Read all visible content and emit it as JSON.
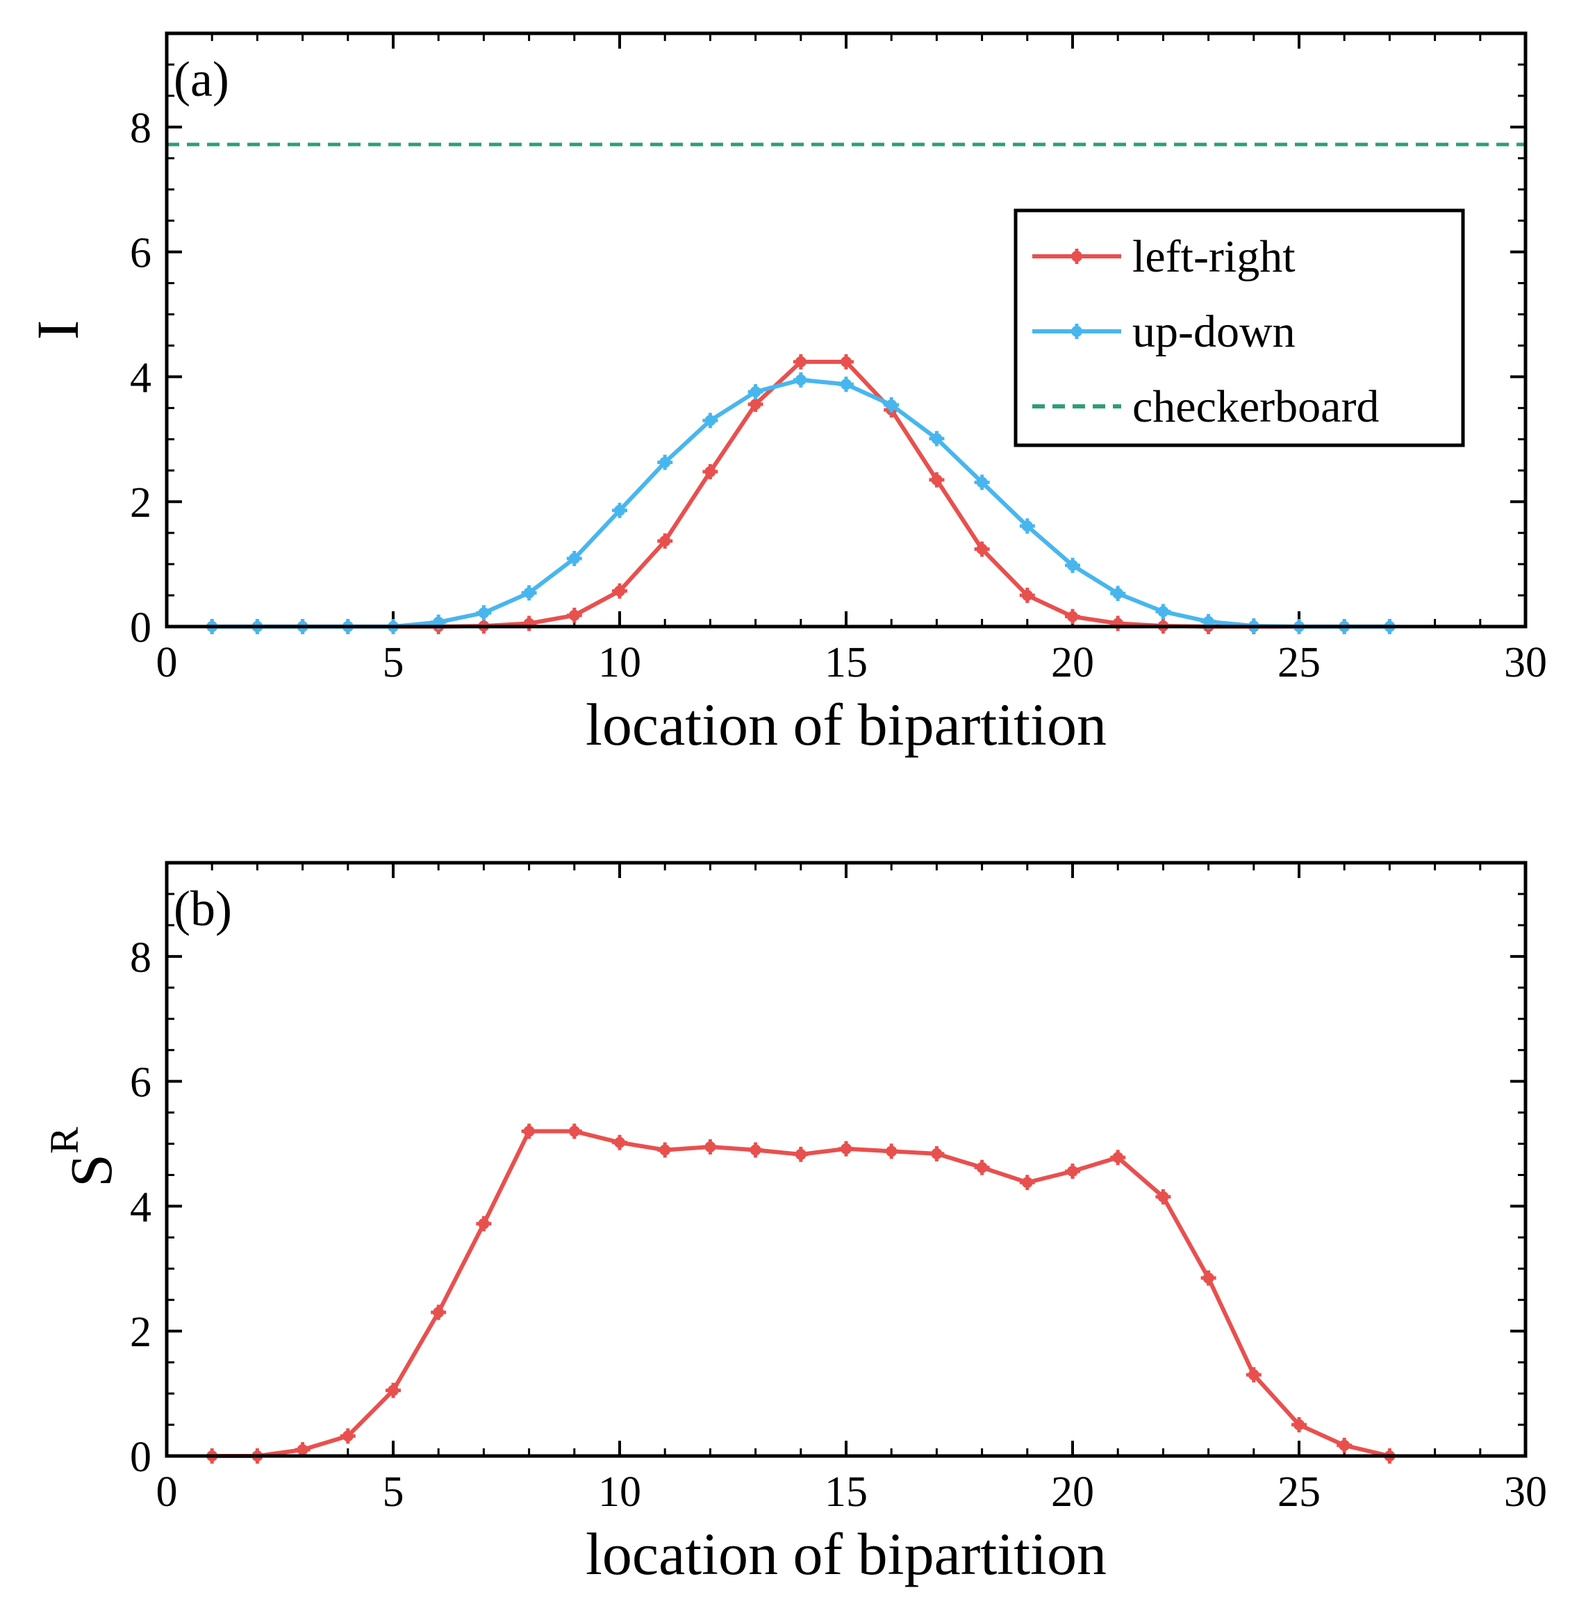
{
  "colors": {
    "left_right": "#E8504E",
    "up_down": "#48B6EE",
    "checkerboard": "#2E9E77",
    "axes": "#000000"
  },
  "chart_data": [
    {
      "type": "line",
      "panel": "(a)",
      "xlabel": "location of bipartition",
      "ylabel": "I",
      "xlim": [
        0,
        30
      ],
      "ylim": [
        0,
        9.5
      ],
      "xticks": [
        0,
        5,
        10,
        15,
        20,
        25,
        30
      ],
      "yticks": [
        0,
        2,
        4,
        6,
        8
      ],
      "x": [
        1,
        2,
        3,
        4,
        5,
        6,
        7,
        8,
        9,
        10,
        11,
        12,
        13,
        14,
        15,
        16,
        17,
        18,
        19,
        20,
        21,
        22,
        23,
        24,
        25,
        26,
        27
      ],
      "series": [
        {
          "name": "left-right",
          "color_key": "left_right",
          "marker": true,
          "values": [
            0,
            0,
            0,
            0,
            0,
            0,
            0.01,
            0.05,
            0.18,
            0.57,
            1.37,
            2.48,
            3.56,
            4.24,
            4.24,
            3.47,
            2.35,
            1.24,
            0.5,
            0.16,
            0.05,
            0.01,
            0,
            0,
            0,
            0,
            0
          ]
        },
        {
          "name": "up-down",
          "color_key": "up_down",
          "marker": true,
          "values": [
            0,
            0,
            0,
            0,
            0,
            0.07,
            0.22,
            0.54,
            1.09,
            1.86,
            2.63,
            3.3,
            3.76,
            3.95,
            3.88,
            3.55,
            3.01,
            2.31,
            1.61,
            0.98,
            0.53,
            0.24,
            0.08,
            0.01,
            0,
            0,
            0
          ]
        },
        {
          "name": "checkerboard",
          "color_key": "checkerboard",
          "marker": false,
          "dashed": true,
          "constant": 7.72
        }
      ],
      "legend": {
        "position": "right",
        "entries": [
          "left-right",
          "up-down",
          "checkerboard"
        ]
      }
    },
    {
      "type": "line",
      "panel": "(b)",
      "xlabel": "location of bipartition",
      "ylabel": "S",
      "ylabel_superscript": "R",
      "xlim": [
        0,
        30
      ],
      "ylim": [
        0,
        9.5
      ],
      "xticks": [
        0,
        5,
        10,
        15,
        20,
        25,
        30
      ],
      "yticks": [
        0,
        2,
        4,
        6,
        8
      ],
      "x": [
        1,
        2,
        3,
        4,
        5,
        6,
        7,
        8,
        9,
        10,
        11,
        12,
        13,
        14,
        15,
        16,
        17,
        18,
        19,
        20,
        21,
        22,
        23,
        24,
        25,
        26,
        27
      ],
      "series": [
        {
          "name": "S^R",
          "color_key": "left_right",
          "marker": true,
          "values": [
            0,
            0,
            0.1,
            0.32,
            1.05,
            2.3,
            3.72,
            5.2,
            5.2,
            5.02,
            4.9,
            4.95,
            4.9,
            4.83,
            4.92,
            4.88,
            4.84,
            4.62,
            4.38,
            4.56,
            4.78,
            4.15,
            2.85,
            1.3,
            0.5,
            0.17,
            0
          ]
        }
      ]
    }
  ]
}
